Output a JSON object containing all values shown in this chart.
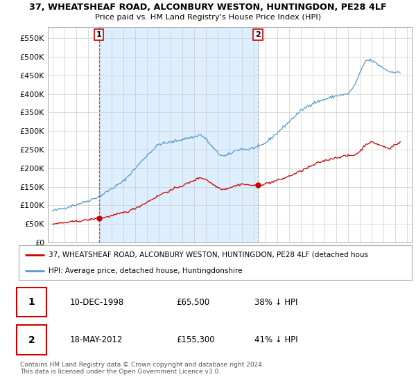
{
  "title1": "37, WHEATSHEAF ROAD, ALCONBURY WESTON, HUNTINGDON, PE28 4LF",
  "title2": "Price paid vs. HM Land Registry's House Price Index (HPI)",
  "legend_red": "37, WHEATSHEAF ROAD, ALCONBURY WESTON, HUNTINGDON, PE28 4LF (detached hous",
  "legend_blue": "HPI: Average price, detached house, Huntingdonshire",
  "annotation1_date": "10-DEC-1998",
  "annotation1_price": 65500,
  "annotation1_price_str": "£65,500",
  "annotation1_pct": "38% ↓ HPI",
  "annotation2_date": "18-MAY-2012",
  "annotation2_price": 155300,
  "annotation2_price_str": "£155,300",
  "annotation2_pct": "41% ↓ HPI",
  "footnote": "Contains HM Land Registry data © Crown copyright and database right 2024.\nThis data is licensed under the Open Government Licence v3.0.",
  "red_color": "#cc0000",
  "blue_color": "#5599cc",
  "shade_color": "#ddeeff",
  "grid_color": "#cccccc",
  "background_color": "#ffffff",
  "ylim": [
    0,
    580000
  ],
  "yticks": [
    0,
    50000,
    100000,
    150000,
    200000,
    250000,
    300000,
    350000,
    400000,
    450000,
    500000,
    550000
  ],
  "ytick_labels": [
    "£0",
    "£50K",
    "£100K",
    "£150K",
    "£200K",
    "£250K",
    "£300K",
    "£350K",
    "£400K",
    "£450K",
    "£500K",
    "£550K"
  ],
  "sale1_x": 1998.92,
  "sale1_y": 65500,
  "sale2_x": 2012.38,
  "sale2_y": 155300,
  "xlim_left": 1994.6,
  "xlim_right": 2025.4,
  "xticks": [
    1995,
    1996,
    1997,
    1998,
    1999,
    2000,
    2001,
    2002,
    2003,
    2004,
    2005,
    2006,
    2007,
    2008,
    2009,
    2010,
    2011,
    2012,
    2013,
    2014,
    2015,
    2016,
    2017,
    2018,
    2019,
    2020,
    2021,
    2022,
    2023,
    2024,
    2025
  ]
}
